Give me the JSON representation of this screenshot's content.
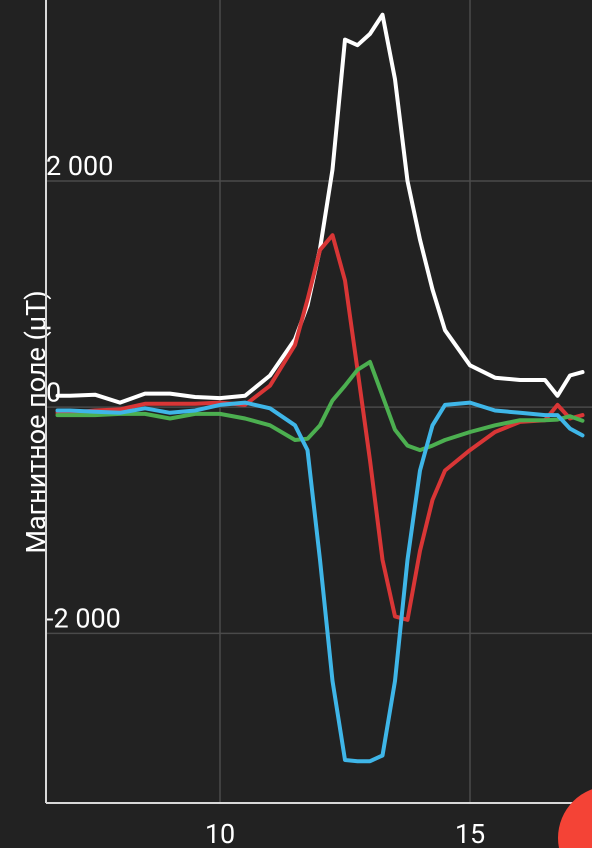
{
  "chart_data": {
    "type": "line",
    "y_label": "Магнитное поле (μT)",
    "x": [
      6.75,
      7,
      7.5,
      8,
      8.5,
      9,
      9.5,
      10,
      10.5,
      11,
      11.5,
      11.75,
      12,
      12.25,
      12.5,
      12.75,
      13,
      13.25,
      13.5,
      13.75,
      14,
      14.25,
      14.5,
      15,
      15.5,
      16,
      16.5,
      16.75,
      17,
      17.25
    ],
    "series": [
      {
        "color": "#ffffff",
        "values": [
          100,
          100,
          110,
          40,
          120,
          120,
          90,
          80,
          100,
          280,
          600,
          900,
          1400,
          2100,
          3250,
          3200,
          3300,
          3470,
          2900,
          2000,
          1480,
          1040,
          680,
          370,
          260,
          240,
          240,
          100,
          280,
          310
        ]
      },
      {
        "color": "#d93636",
        "values": [
          -50,
          -50,
          -30,
          -20,
          30,
          30,
          30,
          40,
          20,
          190,
          550,
          950,
          1390,
          1520,
          1120,
          330,
          -470,
          -1350,
          -1850,
          -1880,
          -1270,
          -820,
          -560,
          -380,
          -220,
          -130,
          -115,
          20,
          -100,
          -70
        ]
      },
      {
        "color": "#4caf50",
        "values": [
          -70,
          -70,
          -70,
          -60,
          -60,
          -100,
          -60,
          -60,
          -100,
          -160,
          -290,
          -280,
          -160,
          60,
          190,
          330,
          400,
          100,
          -200,
          -340,
          -380,
          -340,
          -290,
          -220,
          -160,
          -115,
          -115,
          -110,
          -80,
          -120
        ]
      },
      {
        "color": "#3fb6e8",
        "values": [
          -30,
          -30,
          -40,
          -50,
          -10,
          -50,
          -30,
          20,
          40,
          -10,
          -160,
          -380,
          -1350,
          -2420,
          -3120,
          -3130,
          -3130,
          -3080,
          -2420,
          -1350,
          -560,
          -160,
          20,
          40,
          -30,
          -50,
          -70,
          -70,
          -190,
          -250
        ]
      }
    ],
    "xlim": [
      6.52,
      17.44
    ],
    "ylim": [
      -3500,
      3600
    ],
    "xticks": [
      10,
      15
    ],
    "yticks": [
      {
        "value": -2000,
        "label": "-2 000"
      },
      0,
      {
        "value": 2000,
        "label": "2 000"
      }
    ],
    "grid": true
  }
}
